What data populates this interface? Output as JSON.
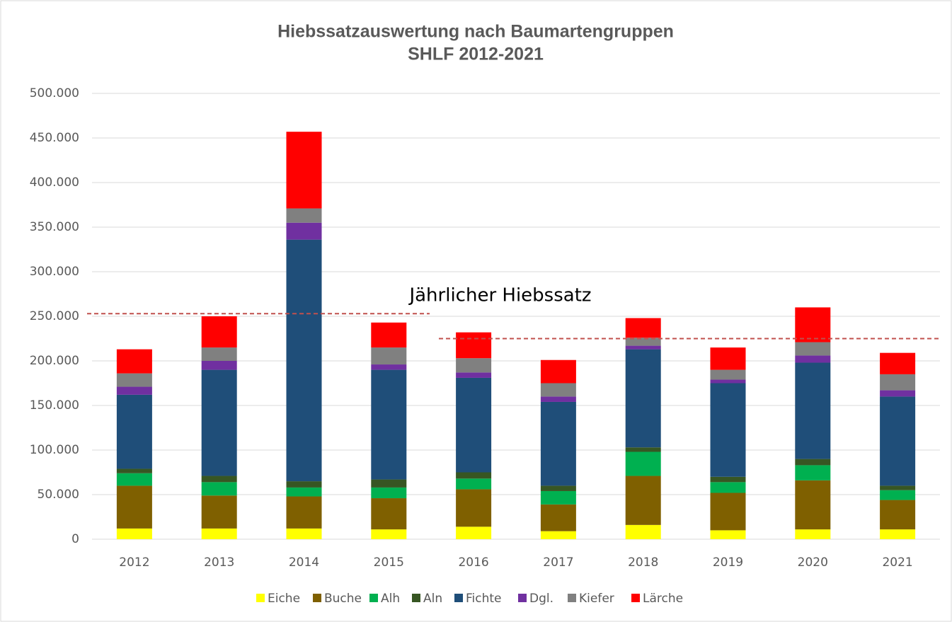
{
  "chart_data": {
    "type": "stacked_bar",
    "title": "Hiebssatzauswertung nach Baumartengruppen",
    "subtitle": "SHLF 2012-2021",
    "annotation": "Jährlicher Hiebssatz",
    "reference_lines": [
      {
        "value": 253000,
        "color": "#c0504d"
      },
      {
        "value": 225000,
        "color": "#c0504d"
      }
    ],
    "categories": [
      "2012",
      "2013",
      "2014",
      "2015",
      "2016",
      "2017",
      "2018",
      "2019",
      "2020",
      "2021"
    ],
    "series": [
      {
        "name": "Eiche",
        "color": "#ffff00",
        "values": [
          12000,
          12000,
          12000,
          11000,
          14000,
          9000,
          16000,
          10000,
          11000,
          11000
        ]
      },
      {
        "name": "Buche",
        "color": "#7f6000",
        "values": [
          48000,
          37000,
          36000,
          35000,
          42000,
          30000,
          55000,
          42000,
          55000,
          33000
        ]
      },
      {
        "name": "Alh",
        "color": "#00b050",
        "values": [
          14000,
          15000,
          10000,
          12000,
          12000,
          15000,
          27000,
          12000,
          17000,
          11000
        ]
      },
      {
        "name": "Aln",
        "color": "#375623",
        "values": [
          5000,
          7000,
          7000,
          9000,
          7000,
          6000,
          5000,
          6000,
          7000,
          5000
        ]
      },
      {
        "name": "Fichte",
        "color": "#1f4e79",
        "values": [
          83000,
          119000,
          271000,
          123000,
          106000,
          94000,
          110000,
          105000,
          108000,
          100000
        ]
      },
      {
        "name": "Dgl.",
        "color": "#7030a0",
        "values": [
          9000,
          10000,
          19000,
          6000,
          6000,
          6000,
          4000,
          4000,
          8000,
          7000
        ]
      },
      {
        "name": "Kiefer",
        "color": "#808080",
        "values": [
          15000,
          15000,
          16000,
          19000,
          16000,
          15000,
          9000,
          11000,
          15000,
          18000
        ]
      },
      {
        "name": "Lärche",
        "color": "#ff0000",
        "values": [
          27000,
          35000,
          86000,
          28000,
          29000,
          26000,
          22000,
          25000,
          39000,
          24000
        ]
      }
    ],
    "ylim": [
      0,
      500000
    ],
    "yticks": [
      0,
      {
        "value": 50000,
        "label": "50.000"
      },
      {
        "value": 100000,
        "label": "100.000"
      },
      {
        "value": 150000,
        "label": "150.000"
      },
      {
        "value": 200000,
        "label": "200.000"
      },
      {
        "value": 250000,
        "label": "250.000"
      },
      {
        "value": 300000,
        "label": "300.000"
      },
      {
        "value": 350000,
        "label": "350.000"
      },
      {
        "value": 400000,
        "label": "400.000"
      },
      {
        "value": 450000,
        "label": "450.000"
      },
      {
        "value": 500000,
        "label": "500.000"
      }
    ],
    "grid": true,
    "legend": "bottom"
  }
}
